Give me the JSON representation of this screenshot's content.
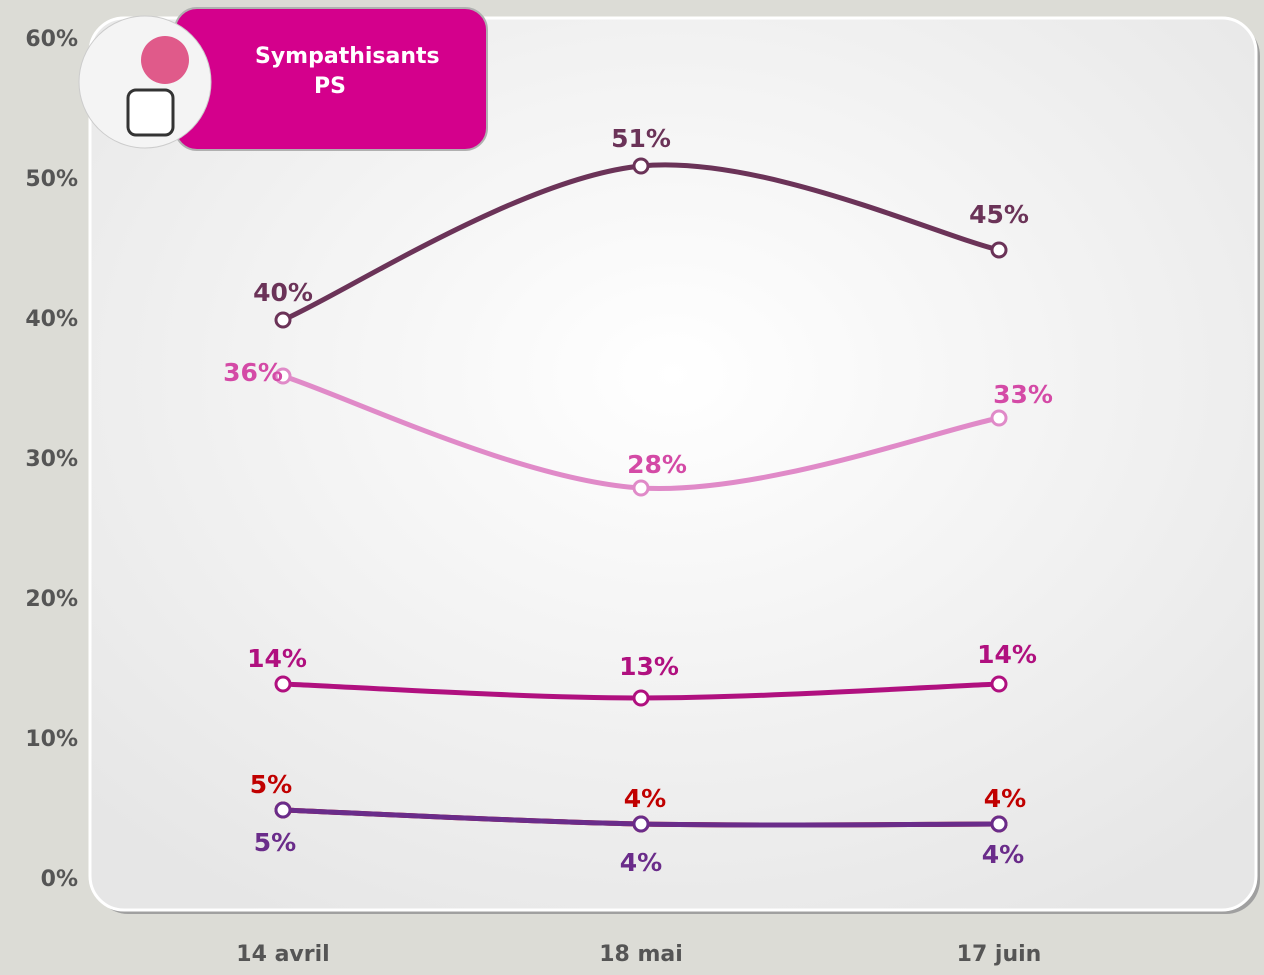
{
  "chart_data": {
    "type": "line",
    "title": "Sympathisants PS",
    "categories": [
      "14 avril",
      "18 mai",
      "17 juin"
    ],
    "series": [
      {
        "color": "#6b3358",
        "values": [
          40,
          51,
          45
        ],
        "value_labels": [
          "40%",
          "51%",
          "45%"
        ]
      },
      {
        "color": "#e08ac8",
        "values": [
          36,
          28,
          33
        ],
        "value_labels": [
          "36%",
          "28%",
          "33%"
        ]
      },
      {
        "color": "#b0107f",
        "values": [
          14,
          13,
          14
        ],
        "value_labels": [
          "14%",
          "13%",
          "14%"
        ]
      },
      {
        "color": "#c00000",
        "values": [
          5,
          4,
          4
        ],
        "value_labels": [
          "5%",
          "4%",
          "4%"
        ]
      },
      {
        "color": "#6a2c8a",
        "values": [
          5,
          4,
          4
        ],
        "value_labels": [
          "5%",
          "4%",
          "4%"
        ]
      }
    ],
    "ylim": [
      0,
      60
    ],
    "yticks": [
      {
        "value": 0,
        "label": "0%"
      },
      {
        "value": 10,
        "label": "10%"
      },
      {
        "value": 20,
        "label": "20%"
      },
      {
        "value": 30,
        "label": "30%"
      },
      {
        "value": 40,
        "label": "40%"
      },
      {
        "value": 50,
        "label": "50%"
      },
      {
        "value": 60,
        "label": "60%"
      }
    ],
    "grid": false
  }
}
